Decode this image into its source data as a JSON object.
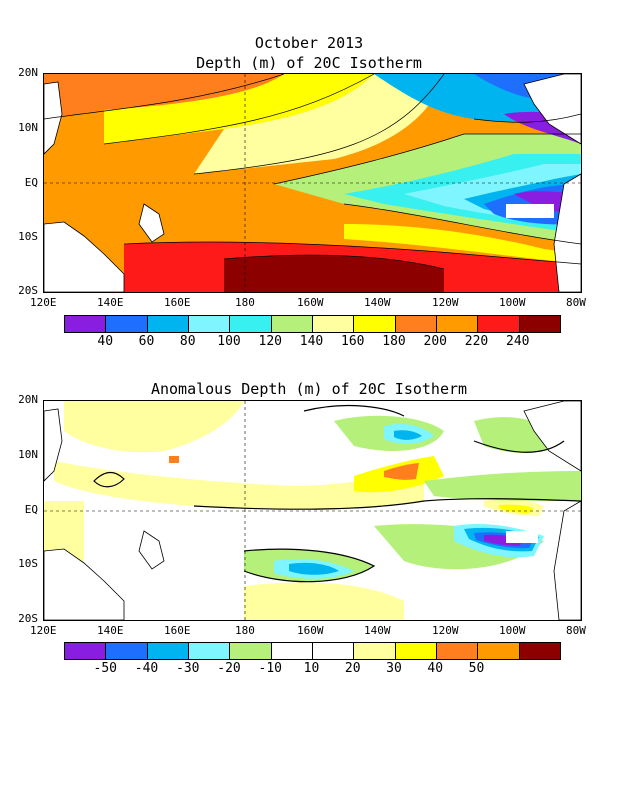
{
  "panel1": {
    "title_line1": "October 2013",
    "title_line2": "Depth (m) of 20C Isotherm",
    "colorbar": {
      "colors": [
        "#8a1ee0",
        "#1f6fff",
        "#00b4f0",
        "#7ef5ff",
        "#38f0ef",
        "#b4f07a",
        "#ffffa0",
        "#ffff00",
        "#ff7f1e",
        "#ff9a00",
        "#ff1a1a",
        "#8c0000"
      ],
      "labels": [
        "40",
        "60",
        "80",
        "100",
        "120",
        "140",
        "160",
        "180",
        "200",
        "220",
        "240"
      ]
    }
  },
  "panel2": {
    "title": "Anomalous Depth (m) of 20C Isotherm",
    "colorbar": {
      "colors": [
        "#8a1ee0",
        "#1f6fff",
        "#00b4f0",
        "#7ef5ff",
        "#b4f07a",
        "#ffffff",
        "#ffffff",
        "#ffffa0",
        "#ffff00",
        "#ff7f1e",
        "#ff9a00",
        "#8c0000"
      ],
      "labels": [
        "-50",
        "-40",
        "-30",
        "-20",
        "-10",
        "10",
        "20",
        "30",
        "40",
        "50"
      ]
    }
  },
  "axes": {
    "x_ticks": [
      "120E",
      "140E",
      "160E",
      "180",
      "160W",
      "140W",
      "120W",
      "100W",
      "80W"
    ],
    "y_ticks": [
      "20N",
      "10N",
      "EQ",
      "10S",
      "20S"
    ]
  }
}
